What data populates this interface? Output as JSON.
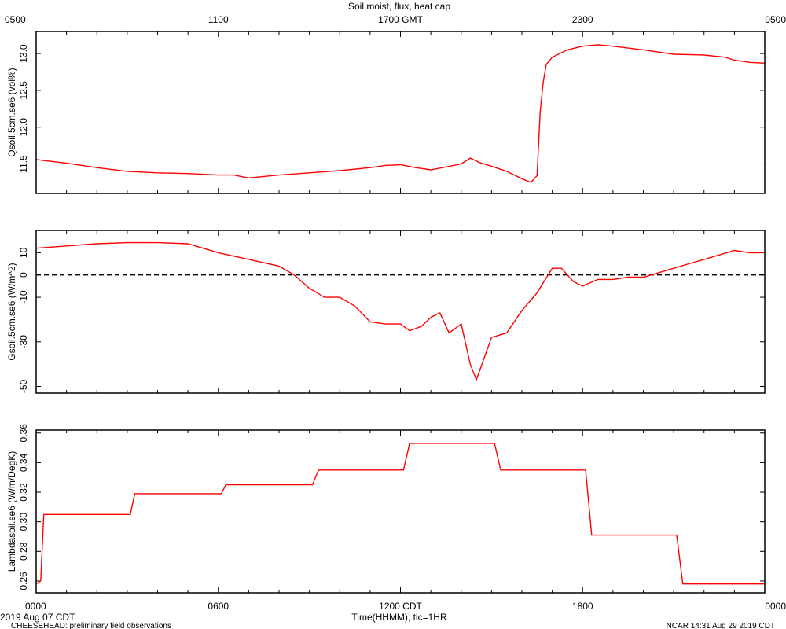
{
  "chart_data": {
    "type": "line",
    "title": "Soil moist, flux, heat cap",
    "top_axis": {
      "label": "1700 GMT",
      "ticks": [
        "0500",
        "1100",
        "1700 GMT",
        "2300",
        "0500"
      ]
    },
    "bottom_axis": {
      "xlabel": "Time(HHMM), tic=1HR",
      "ticks": [
        "0000",
        "0600",
        "1200 CDT",
        "1800",
        "0000"
      ],
      "xlim": [
        0,
        24
      ]
    },
    "footer": {
      "date": "2019 Aug 07 CDT",
      "source": "CHEESEHEAD: preliminary field observations",
      "stamp": "NCAR 14:31 Aug 29 2019 CDT"
    },
    "line_color": "#ff0000",
    "panels": [
      {
        "ylabel": "Qsoil.5cm.se6 (vol%)",
        "ylim": [
          11.1,
          13.3
        ],
        "yticks": [
          "11.5",
          "12.0",
          "12.5",
          "13.0"
        ],
        "ytick_values": [
          11.5,
          12.0,
          12.5,
          13.0
        ],
        "x": [
          0,
          1,
          2,
          3,
          4,
          5,
          6,
          6.5,
          7,
          8,
          9,
          10,
          11,
          11.5,
          12,
          12.5,
          13,
          13.5,
          14,
          14.3,
          14.6,
          15,
          15.5,
          16,
          16.3,
          16.5,
          16.6,
          16.7,
          16.8,
          17,
          17.5,
          18,
          18.5,
          19,
          20,
          21,
          22,
          22.7,
          23,
          23.5,
          24
        ],
        "y": [
          11.56,
          11.51,
          11.45,
          11.4,
          11.38,
          11.37,
          11.35,
          11.35,
          11.31,
          11.35,
          11.38,
          11.41,
          11.45,
          11.48,
          11.49,
          11.45,
          11.42,
          11.46,
          11.5,
          11.58,
          11.52,
          11.47,
          11.4,
          11.3,
          11.25,
          11.34,
          12.2,
          12.6,
          12.85,
          12.95,
          13.05,
          13.1,
          13.12,
          13.1,
          13.05,
          12.99,
          12.98,
          12.95,
          12.91,
          12.88,
          12.87
        ]
      },
      {
        "ylabel": "Gsoil.5cm.se6 (W/m^2)",
        "ylim": [
          -53,
          20
        ],
        "yticks": [
          "10",
          "0",
          "-10",
          "-30",
          "-50"
        ],
        "ytick_values": [
          10,
          0,
          -10,
          -30,
          -50
        ],
        "zero_line": true,
        "x": [
          0,
          1,
          2,
          3,
          4,
          5,
          6,
          7,
          8,
          8.5,
          9,
          9.5,
          10,
          10.5,
          11,
          11.5,
          12,
          12.3,
          12.7,
          13,
          13.3,
          13.6,
          14,
          14.3,
          14.5,
          15,
          15.5,
          16,
          16.5,
          17,
          17.3,
          17.7,
          18,
          18.5,
          19,
          19.5,
          20,
          20.5,
          21,
          21.5,
          22,
          22.5,
          23,
          23.5,
          24
        ],
        "y": [
          12,
          13,
          14,
          14.5,
          14.5,
          14,
          10,
          7,
          4,
          0,
          -6,
          -10,
          -10,
          -14,
          -21,
          -22,
          -22,
          -25,
          -23,
          -19,
          -17,
          -26,
          -22,
          -40,
          -47,
          -28,
          -26,
          -16,
          -8,
          3,
          3,
          -3,
          -5,
          -2,
          -2,
          -1,
          -1,
          1,
          3,
          5,
          7,
          9,
          11,
          10,
          10
        ]
      },
      {
        "ylabel": "Lambdasoil.se6 (W/m/DegK)",
        "ylim": [
          0.252,
          0.362
        ],
        "yticks": [
          "0.26",
          "0.28",
          "0.30",
          "0.32",
          "0.34",
          "0.36"
        ],
        "ytick_values": [
          0.26,
          0.28,
          0.3,
          0.32,
          0.34,
          0.36
        ],
        "x": [
          0,
          0.15,
          0.25,
          3.1,
          3.25,
          6.1,
          6.25,
          9.1,
          9.3,
          12.1,
          12.3,
          15.1,
          15.3,
          18.1,
          18.3,
          21.1,
          21.3,
          24
        ],
        "y": [
          0.258,
          0.26,
          0.305,
          0.305,
          0.319,
          0.319,
          0.325,
          0.325,
          0.335,
          0.335,
          0.353,
          0.353,
          0.335,
          0.335,
          0.291,
          0.291,
          0.258,
          0.258
        ]
      }
    ]
  }
}
